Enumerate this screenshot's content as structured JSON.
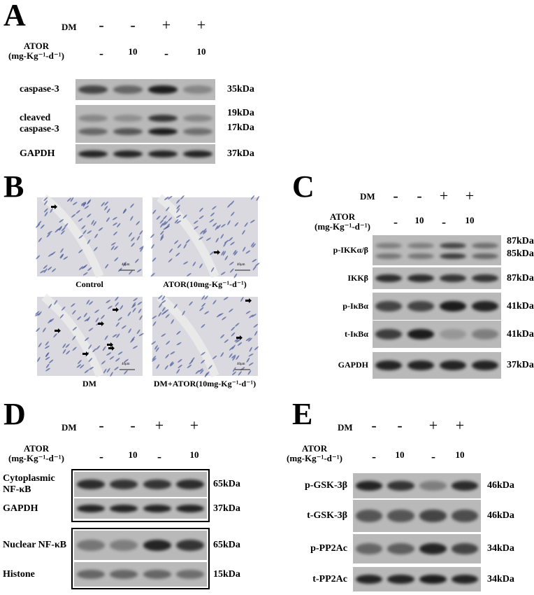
{
  "panels": {
    "A": {
      "letter": "A",
      "dm_label": "DM",
      "dm": [
        "-",
        "-",
        "+",
        "+"
      ],
      "ator_label_1": "ATOR",
      "ator_label_2": "(mg-Kg⁻¹-d⁻¹)",
      "ator": [
        "-",
        "10",
        "-",
        "10"
      ],
      "blots": [
        {
          "label": "caspase-3",
          "kda": [
            "35kDa"
          ],
          "bands": [
            [
              0.7,
              0.5,
              0.95,
              0.3
            ]
          ]
        },
        {
          "label_lines": [
            "cleaved",
            "caspase-3"
          ],
          "kda": [
            "19kDa",
            "17kDa"
          ],
          "bands": [
            [
              0.3,
              0.25,
              0.8,
              0.3
            ],
            [
              0.5,
              0.6,
              0.95,
              0.45
            ]
          ]
        },
        {
          "label": "GAPDH",
          "kda": [
            "37kDa"
          ],
          "bands": [
            [
              0.9,
              0.9,
              0.9,
              0.9
            ]
          ]
        }
      ]
    },
    "B": {
      "letter": "B",
      "images": [
        {
          "caption": "Control",
          "scale_bar": "40μm"
        },
        {
          "caption": "ATOR(10mg-Kg⁻¹-d⁻¹)",
          "scale_bar": "40μm"
        },
        {
          "caption": "DM",
          "scale_bar": "40μm"
        },
        {
          "caption": "DM+ATOR(10mg-Kg⁻¹-d⁻¹)",
          "scale_bar": "40μm"
        }
      ]
    },
    "C": {
      "letter": "C",
      "dm_label": "DM",
      "dm": [
        "-",
        "-",
        "+",
        "+"
      ],
      "ator_label_1": "ATOR",
      "ator_label_2": "(mg-Kg⁻¹-d⁻¹)",
      "ator": [
        "-",
        "10",
        "-",
        "10"
      ],
      "blots": [
        {
          "label": "p-IKKα/β",
          "kda": [
            "87kDa",
            "85kDa"
          ],
          "bands": [
            [
              0.35,
              0.35,
              0.7,
              0.45
            ],
            [
              0.4,
              0.4,
              0.75,
              0.5
            ]
          ]
        },
        {
          "label": "IKKβ",
          "kda": [
            "87kDa"
          ],
          "bands": [
            [
              0.85,
              0.85,
              0.8,
              0.8
            ]
          ]
        },
        {
          "label": "p-IκBα",
          "kda": [
            "41kDa"
          ],
          "bands": [
            [
              0.7,
              0.7,
              0.95,
              0.9
            ]
          ]
        },
        {
          "label": "t-IκBα",
          "kda": [
            "41kDa"
          ],
          "bands": [
            [
              0.75,
              0.95,
              0.2,
              0.35
            ]
          ]
        },
        {
          "label": "GAPDH",
          "kda": [
            "37kDa"
          ],
          "bands": [
            [
              0.9,
              0.9,
              0.9,
              0.9
            ]
          ]
        }
      ]
    },
    "D": {
      "letter": "D",
      "dm_label": "DM",
      "dm": [
        "-",
        "-",
        "+",
        "+"
      ],
      "ator_label_1": "ATOR",
      "ator_label_2": "(mg-Kg⁻¹-d⁻¹)",
      "ator": [
        "-",
        "10",
        "-",
        "10"
      ],
      "blots": [
        {
          "label_lines": [
            "Cytoplasmic",
            "NF-κB"
          ],
          "kda": [
            "65kDa"
          ],
          "bands": [
            [
              0.85,
              0.8,
              0.8,
              0.85
            ]
          ]
        },
        {
          "label": "GAPDH",
          "kda": [
            "37kDa"
          ],
          "bands": [
            [
              0.9,
              0.9,
              0.9,
              0.9
            ]
          ]
        },
        {
          "label": "Nuclear NF-κB",
          "kda": [
            "65kDa"
          ],
          "bands": [
            [
              0.4,
              0.35,
              0.9,
              0.8
            ]
          ]
        },
        {
          "label": "Histone",
          "kda": [
            "15kDa"
          ],
          "bands": [
            [
              0.5,
              0.5,
              0.5,
              0.45
            ]
          ]
        }
      ]
    },
    "E": {
      "letter": "E",
      "dm_label": "DM",
      "dm": [
        "-",
        "-",
        "+",
        "+"
      ],
      "ator_label_1": "ATOR",
      "ator_label_2": "(mg-Kg⁻¹-d⁻¹)",
      "ator": [
        "-",
        "10",
        "-",
        "10"
      ],
      "blots": [
        {
          "label": "p-GSK-3β",
          "kda": [
            "46kDa"
          ],
          "bands": [
            [
              0.9,
              0.8,
              0.35,
              0.85
            ]
          ]
        },
        {
          "label": "t-GSK-3β",
          "kda": [
            "46kDa"
          ],
          "bands": [
            [
              0.6,
              0.6,
              0.7,
              0.65
            ]
          ]
        },
        {
          "label": "p-PP2Ac",
          "kda": [
            "34kDa"
          ],
          "bands": [
            [
              0.5,
              0.55,
              0.9,
              0.7
            ]
          ]
        },
        {
          "label": "t-PP2Ac",
          "kda": [
            "34kDa"
          ],
          "bands": [
            [
              0.9,
              0.9,
              0.95,
              0.9
            ]
          ]
        }
      ]
    }
  },
  "colors": {
    "background": "#ffffff",
    "membrane": "#b9b9b9",
    "band": "#141414",
    "tissue": "#d9d9df",
    "nuclei": "#4a5a9a"
  }
}
